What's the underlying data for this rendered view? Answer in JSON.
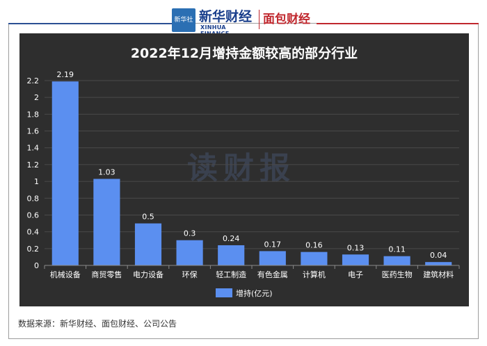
{
  "brand": {
    "xinhua_box": "新华社",
    "xinhua_name": "新华财经",
    "xinhua_en": "XINHUA FINANCE",
    "mianbao": "面包财经"
  },
  "watermark": "读财报",
  "source_note": "数据来源：新华财经、面包财经、公司公告",
  "colors": {
    "bar": "#5b8ff0",
    "background": "#2e2e2e",
    "grid": "#4a4a4a",
    "text": "#ffffff"
  },
  "chart_data": {
    "type": "bar",
    "title": "2022年12月增持金额较高的部分行业",
    "categories": [
      "机械设备",
      "商贸零售",
      "电力设备",
      "环保",
      "轻工制造",
      "有色金属",
      "计算机",
      "电子",
      "医药生物",
      "建筑材料"
    ],
    "series": [
      {
        "name": "增持(亿元)",
        "values": [
          2.19,
          1.03,
          0.5,
          0.3,
          0.24,
          0.17,
          0.16,
          0.13,
          0.11,
          0.04
        ]
      }
    ],
    "data_labels": [
      "2.19",
      "1.03",
      "0.5",
      "0.3",
      "0.24",
      "0.17",
      "0.16",
      "0.13",
      "0.11",
      "0.04"
    ],
    "yticks": [
      "0",
      "0.2",
      "0.4",
      "0.6",
      "0.8",
      "1",
      "1.2",
      "1.4",
      "1.6",
      "1.8",
      "2",
      "2.2"
    ],
    "ylim": [
      0,
      2.2
    ],
    "grid": true,
    "legend_position": "bottom"
  }
}
